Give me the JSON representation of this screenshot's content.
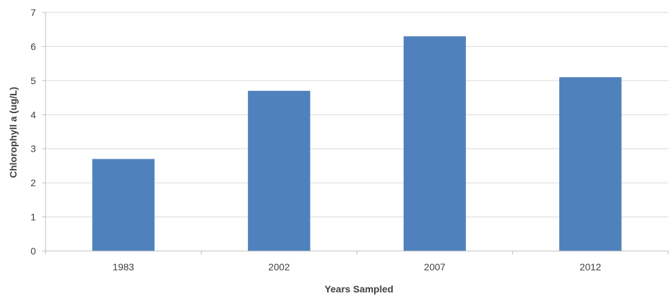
{
  "chart_data": {
    "type": "bar",
    "title": "",
    "xlabel": "Years Sampled",
    "ylabel": "Chlorophyll a (ug/L)",
    "categories": [
      "1983",
      "2002",
      "2007",
      "2012"
    ],
    "values": [
      2.7,
      4.7,
      6.3,
      5.1
    ],
    "ylim": [
      0,
      7
    ],
    "yticks": [
      0,
      1,
      2,
      3,
      4,
      5,
      6,
      7
    ],
    "grid": "horizontal",
    "legend": "none",
    "colors": {
      "bar": "#4f81bd",
      "grid": "#d9d9d9",
      "axis": "#bfbfbf"
    }
  }
}
